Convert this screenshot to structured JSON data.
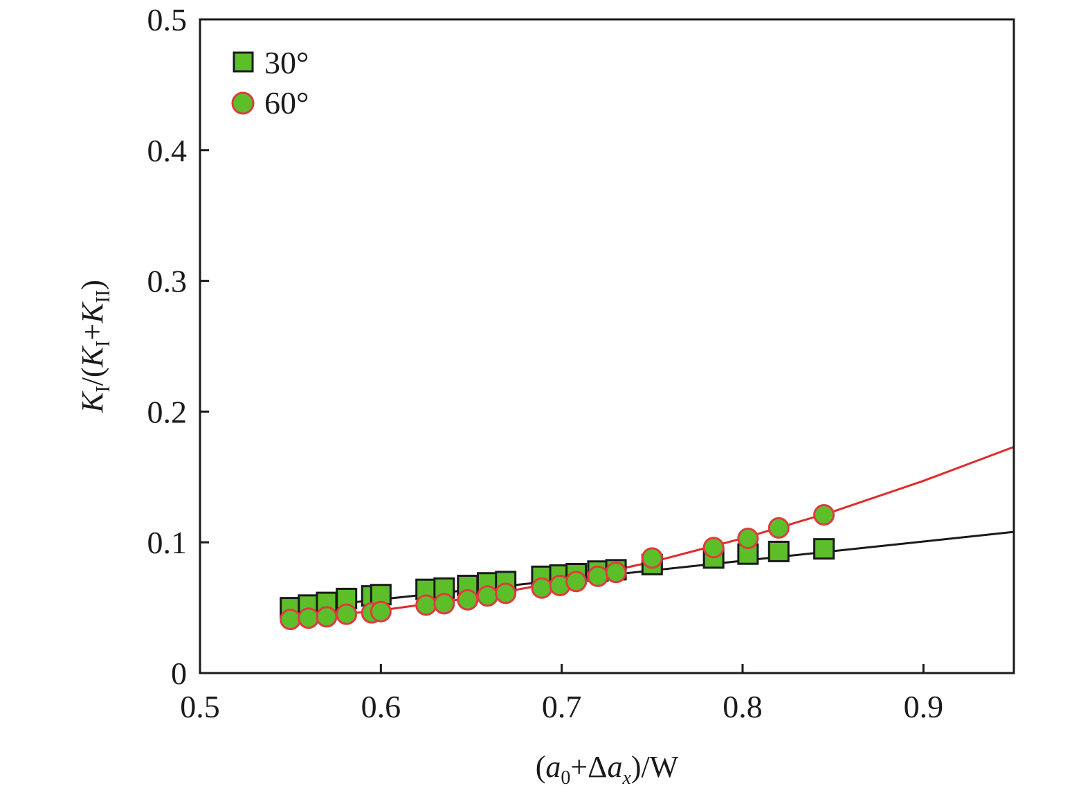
{
  "chart_data": {
    "type": "scatter",
    "title": "",
    "xlabel_parts": [
      {
        "t": "(",
        "style": "normal"
      },
      {
        "t": "a",
        "style": "italic"
      },
      {
        "t": "0",
        "style": "sub"
      },
      {
        "t": "+Δ",
        "style": "normal"
      },
      {
        "t": "a",
        "style": "italic"
      },
      {
        "t": "x",
        "style": "sub-italic"
      },
      {
        "t": ")/W",
        "style": "normal"
      }
    ],
    "ylabel_parts": [
      {
        "t": "K",
        "style": "italic"
      },
      {
        "t": "I",
        "style": "sub"
      },
      {
        "t": "/(",
        "style": "normal"
      },
      {
        "t": "K",
        "style": "italic"
      },
      {
        "t": "I",
        "style": "sub"
      },
      {
        "t": "+",
        "style": "normal"
      },
      {
        "t": "K",
        "style": "italic"
      },
      {
        "t": "II",
        "style": "sub"
      },
      {
        "t": ")",
        "style": "normal"
      }
    ],
    "xlim": [
      0.5,
      0.95
    ],
    "ylim": [
      0,
      0.5
    ],
    "xticks": [
      "0.5",
      "0.6",
      "0.7",
      "0.8",
      "0.9"
    ],
    "yticks": [
      "0",
      "0.1",
      "0.2",
      "0.3",
      "0.4",
      "0.5"
    ],
    "grid": false,
    "legend_position": "top-left",
    "x": [
      0.55,
      0.56,
      0.57,
      0.581,
      0.595,
      0.6,
      0.625,
      0.635,
      0.648,
      0.659,
      0.669,
      0.689,
      0.699,
      0.708,
      0.72,
      0.73,
      0.75,
      0.784,
      0.803,
      0.82,
      0.845
    ],
    "series": [
      {
        "name": "30°",
        "marker": "square",
        "fill": "#5cbf2a",
        "edge": "#1a1a1a",
        "line_color": "#1a1a1a",
        "values": [
          0.05,
          0.052,
          0.054,
          0.057,
          0.059,
          0.06,
          0.064,
          0.065,
          0.067,
          0.069,
          0.07,
          0.074,
          0.075,
          0.076,
          0.078,
          0.079,
          0.083,
          0.088,
          0.091,
          0.093,
          0.095
        ],
        "fit": {
          "x": [
            0.55,
            0.95
          ],
          "y": [
            0.049,
            0.108
          ]
        }
      },
      {
        "name": "60°",
        "marker": "circle",
        "fill": "#5cbf2a",
        "edge": "#e03a3e",
        "line_color": "#e02a2a",
        "values": [
          0.041,
          0.042,
          0.043,
          0.045,
          0.046,
          0.047,
          0.052,
          0.053,
          0.056,
          0.059,
          0.061,
          0.065,
          0.067,
          0.07,
          0.074,
          0.077,
          0.088,
          0.096,
          0.103,
          0.111,
          0.121
        ],
        "fit": {
          "x": [
            0.55,
            0.6,
            0.65,
            0.7,
            0.75,
            0.8,
            0.85,
            0.9,
            0.95
          ],
          "y": [
            0.041,
            0.048,
            0.0575,
            0.07,
            0.085,
            0.103,
            0.1235,
            0.147,
            0.173
          ]
        }
      }
    ]
  }
}
